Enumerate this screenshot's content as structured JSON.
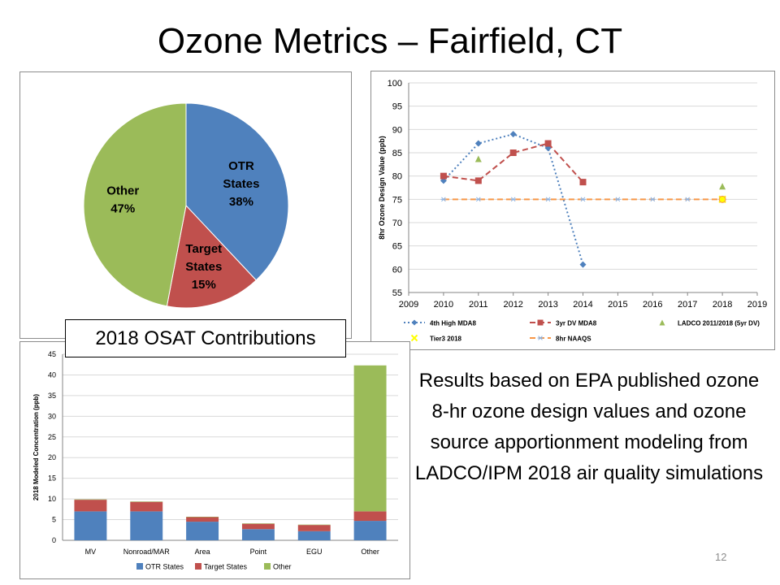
{
  "title": "Ozone Metrics – Fairfield, CT",
  "caption": "2018 OSAT Contributions",
  "note": "Results based on EPA published ozone 8-hr ozone design values and ozone source apportionment modeling from LADCO/IPM 2018 air quality simulations",
  "page_number": "12",
  "chart_data": [
    {
      "type": "pie",
      "slices": [
        {
          "label": "OTR\nStates\n38%",
          "value": 38,
          "color": "#4F81BD"
        },
        {
          "label": "Target\nStates\n15%",
          "value": 15,
          "color": "#C0504D"
        },
        {
          "label": "Other\n47%",
          "value": 47,
          "color": "#9BBB59"
        }
      ]
    },
    {
      "type": "line",
      "ylabel": "8hr Ozone Design Value (ppb)",
      "xlim": [
        2009,
        2019
      ],
      "ylim": [
        55,
        100
      ],
      "xticks": [
        "2009",
        "2010",
        "2011",
        "2012",
        "2013",
        "2014",
        "2015",
        "2016",
        "2017",
        "2018",
        "2019"
      ],
      "yticks": [
        "55",
        "60",
        "65",
        "70",
        "75",
        "80",
        "85",
        "90",
        "95",
        "100"
      ],
      "grid": true,
      "legend_position": "bottom",
      "series": [
        {
          "name": "4th High MDA8",
          "color": "#4F81BD",
          "marker": "diamond",
          "line": "dotted",
          "x": [
            2010,
            2011,
            2012,
            2013,
            2014
          ],
          "y": [
            79,
            87,
            89,
            86,
            61
          ]
        },
        {
          "name": "3yr DV MDA8",
          "color": "#C0504D",
          "marker": "square",
          "line": "dashed",
          "x": [
            2010,
            2011,
            2012,
            2013,
            2014
          ],
          "y": [
            80,
            79,
            85,
            87,
            78.7
          ]
        },
        {
          "name": "LADCO 2011/2018 (5yr DV)",
          "color": "#9BBB59",
          "marker": "triangle",
          "line": "none",
          "x": [
            2011,
            2018
          ],
          "y": [
            83.7,
            77.8
          ]
        },
        {
          "name": "Tier3 2018",
          "color": "#FFFF00",
          "marker": "x",
          "line": "none",
          "x": [
            2018
          ],
          "y": [
            75
          ]
        },
        {
          "name": "8hr NAAQS",
          "color": "#F79646",
          "marker": "star",
          "line": "dashed",
          "x": [
            2010,
            2011,
            2012,
            2013,
            2014,
            2015,
            2016,
            2017,
            2018
          ],
          "y": [
            75,
            75,
            75,
            75,
            75,
            75,
            75,
            75,
            75
          ]
        }
      ]
    },
    {
      "type": "bar",
      "stacked": true,
      "ylabel": "2018 Modeled Concentration (ppb)",
      "ylim": [
        0,
        45
      ],
      "yticks": [
        "0",
        "5",
        "10",
        "15",
        "20",
        "25",
        "30",
        "35",
        "40",
        "45"
      ],
      "grid": true,
      "legend_position": "bottom",
      "categories": [
        "MV",
        "Nonroad/MAR",
        "Area",
        "Point",
        "EGU",
        "Other"
      ],
      "series": [
        {
          "name": "OTR States",
          "color": "#4F81BD",
          "values": [
            7.0,
            7.0,
            4.5,
            2.7,
            2.2,
            4.7
          ]
        },
        {
          "name": "Target States",
          "color": "#C0504D",
          "values": [
            2.8,
            2.3,
            1.1,
            1.3,
            1.5,
            2.3
          ]
        },
        {
          "name": "Other",
          "color": "#9BBB59",
          "values": [
            0.1,
            0.1,
            0.1,
            0.1,
            0.1,
            35.3
          ]
        }
      ]
    }
  ]
}
